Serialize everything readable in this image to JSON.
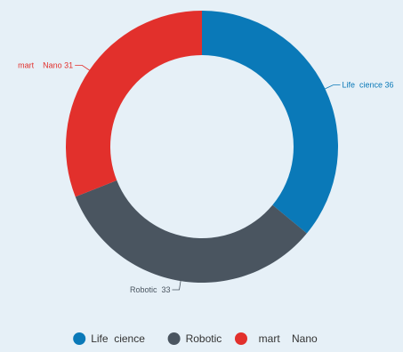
{
  "chart_data": {
    "type": "pie",
    "variant": "donut",
    "title": "",
    "categories": [
      "Life  cience",
      "Robotic",
      "  mart    Nano"
    ],
    "values": [
      36,
      33,
      31
    ],
    "data_labels": [
      "Life  cience 36",
      "Robotic  33",
      "mart    Nano 31"
    ],
    "colors": [
      "#0a79b8",
      "#4a5560",
      "#e2302c"
    ],
    "legend": {
      "position": "bottom",
      "entries": [
        "Life  cience",
        "Robotic",
        "  mart    Nano"
      ]
    },
    "start_angle_deg": 0,
    "direction": "clockwise"
  }
}
